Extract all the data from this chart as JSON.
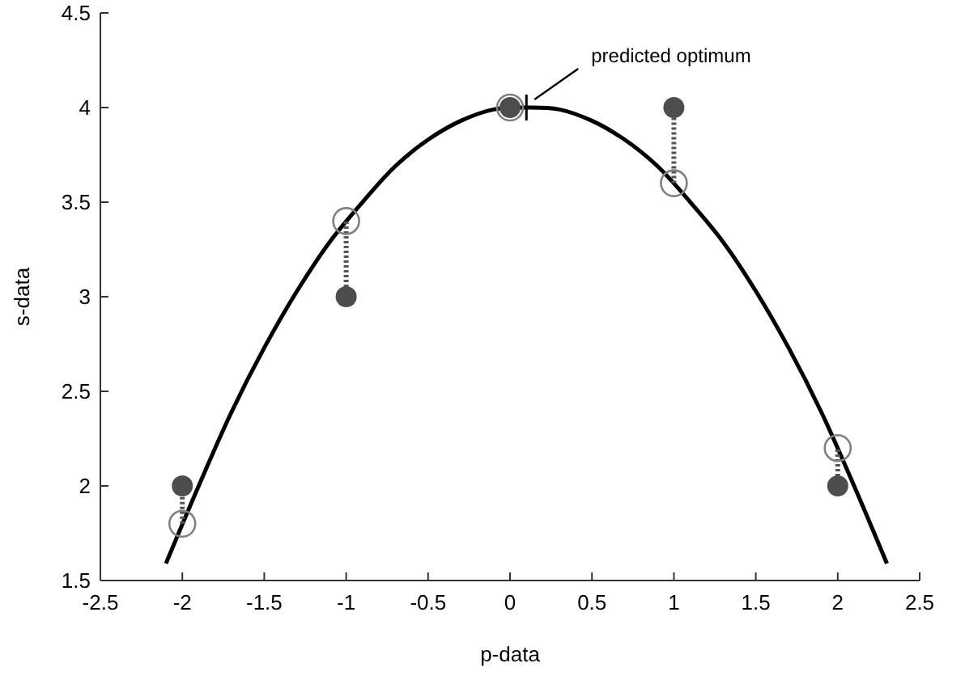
{
  "chart_data": {
    "type": "scatter",
    "xlabel": "p-data",
    "ylabel": "s-data",
    "xlim": [
      -2.5,
      2.5
    ],
    "xticks": [
      -2.5,
      -2,
      -1.5,
      -1,
      -0.5,
      0,
      0.5,
      1,
      1.5,
      2,
      2.5
    ],
    "ylim": [
      1.5,
      4.5
    ],
    "yticks": [
      1.5,
      2,
      2.5,
      3,
      3.5,
      4,
      4.5
    ],
    "grid": false,
    "series": [
      {
        "type": "line",
        "color": "#000000",
        "line_style": "solid",
        "x": [
          -2.1,
          -1.9,
          -1.7,
          -1.5,
          -1.3,
          -1.1,
          -0.9,
          -0.7,
          -0.5,
          -0.3,
          -0.1,
          0.1,
          0.3,
          0.5,
          0.7,
          0.9,
          1.1,
          1.3,
          1.5,
          1.7,
          1.9,
          2.1,
          2.3
        ],
        "values": [
          1.59,
          2.0,
          2.39,
          2.73,
          3.03,
          3.29,
          3.5,
          3.69,
          3.83,
          3.93,
          3.99,
          4.0,
          3.99,
          3.93,
          3.83,
          3.69,
          3.5,
          3.29,
          3.03,
          2.73,
          2.39,
          2.0,
          1.59
        ]
      },
      {
        "color": "#4d4d4d",
        "marker": "circle",
        "x": [
          -2,
          -1,
          0,
          1,
          2
        ],
        "values": [
          2,
          3,
          4,
          4,
          2
        ],
        "errors": [
          [
            1.8,
            2
          ],
          [
            3,
            3.4
          ],
          null,
          [
            3.6,
            4
          ],
          [
            2,
            2.2
          ]
        ]
      },
      {
        "color": "#808080",
        "marker": "circle",
        "x": [
          -2,
          -1,
          0,
          1,
          2
        ],
        "values": [
          1.8,
          3.4,
          4,
          3.6,
          2.2
        ]
      }
    ],
    "annotations": [
      {
        "text": "predicted optimum",
        "x": 0.1,
        "y": 4.0
      }
    ]
  }
}
